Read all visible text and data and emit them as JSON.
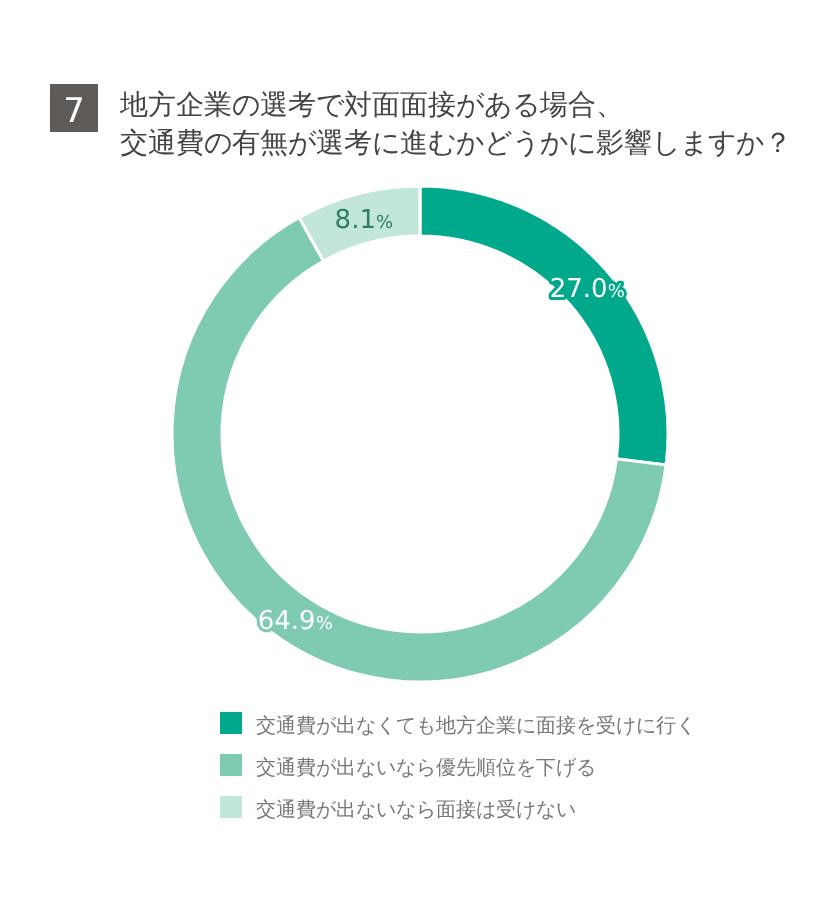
{
  "chart_data": {
    "type": "donut",
    "title": "地方企業の選考で対面面接がある場合、",
    "subtitle": "交通費の有無が選考に進むかどうかに影響しますか？",
    "annotations": [
      "7"
    ],
    "categories": [
      "交通費が出なくても地方企業に面接を受けに行く",
      "交通費が出ないなら優先順位を下げる",
      "交通費が出ないなら面接は受けない"
    ],
    "values": [
      27.0,
      64.9,
      8.1
    ],
    "value_labels": [
      "27.0%",
      "64.9%",
      "8.1%"
    ],
    "colors": [
      "#00a98b",
      "#7fcab3",
      "#c2e6da"
    ],
    "legend": "bottom"
  }
}
